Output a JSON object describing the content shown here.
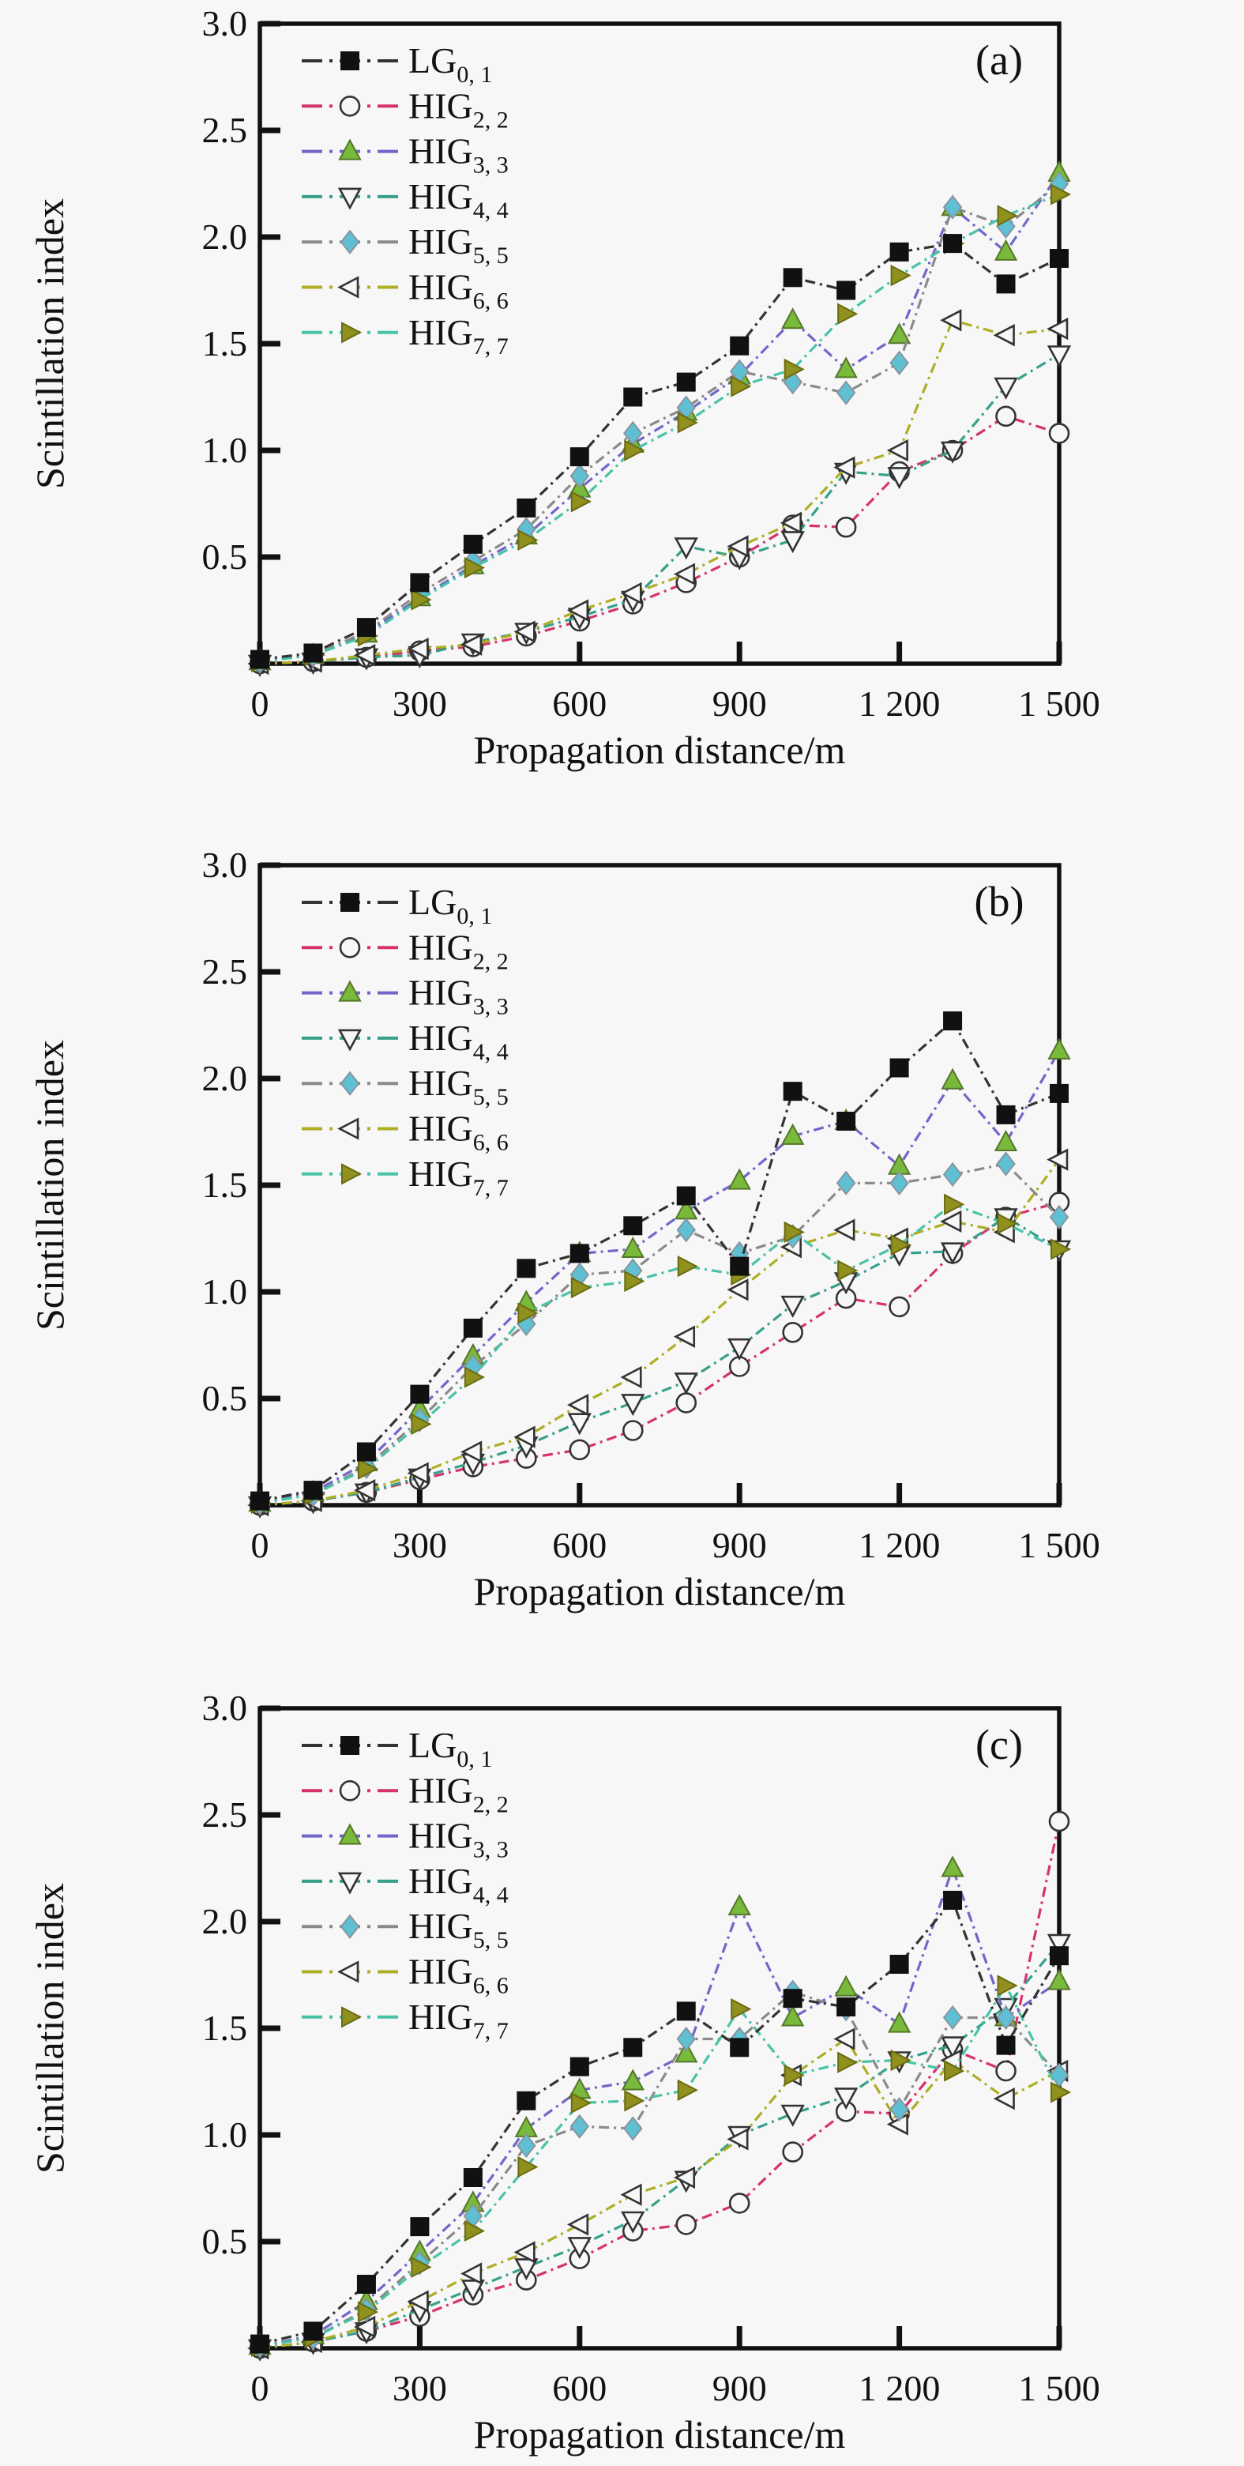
{
  "figure": {
    "background_color": "#f7f7f7",
    "axis_color": "#111111",
    "x_axis": {
      "label": "Propagation distance/m",
      "tick_labels": [
        "0",
        "300",
        "600",
        "900",
        "1 200",
        "1 500"
      ],
      "tick_values": [
        0,
        300,
        600,
        900,
        1200,
        1500
      ],
      "min": 0,
      "max": 1500
    },
    "y_axis": {
      "label": "Scintillation index",
      "tick_labels": [
        "0.5",
        "1.0",
        "1.5",
        "2.0",
        "2.5",
        "3.0"
      ],
      "tick_values": [
        0.5,
        1.0,
        1.5,
        2.0,
        2.5,
        3.0
      ],
      "min": 0,
      "max": 3.0
    }
  },
  "series_styles": [
    {
      "id": "lg01",
      "label": "LG",
      "subscript": "0, 1",
      "marker": "square",
      "filled": true,
      "marker_color": "#111111",
      "marker_edge": "#111111",
      "line_color": "#333333"
    },
    {
      "id": "hig22",
      "label": "HIG",
      "subscript": "2, 2",
      "marker": "circle",
      "filled": false,
      "marker_color": "#f7f7f7",
      "marker_edge": "#333333",
      "line_color": "#d6336c"
    },
    {
      "id": "hig33",
      "label": "HIG",
      "subscript": "3, 3",
      "marker": "triangle-up",
      "filled": true,
      "marker_color": "#79b93c",
      "marker_edge": "#55772a",
      "line_color": "#7166c9"
    },
    {
      "id": "hig44",
      "label": "HIG",
      "subscript": "4, 4",
      "marker": "triangle-down",
      "filled": false,
      "marker_color": "#f7f7f7",
      "marker_edge": "#333333",
      "line_color": "#37a08c"
    },
    {
      "id": "hig55",
      "label": "HIG",
      "subscript": "5, 5",
      "marker": "diamond",
      "filled": true,
      "marker_color": "#5fc0d4",
      "marker_edge": "#8795a0",
      "line_color": "#8a8a8a"
    },
    {
      "id": "hig66",
      "label": "HIG",
      "subscript": "6, 6",
      "marker": "triangle-left",
      "filled": false,
      "marker_color": "#f7f7f7",
      "marker_edge": "#333333",
      "line_color": "#aeae25"
    },
    {
      "id": "hig77",
      "label": "HIG",
      "subscript": "7, 7",
      "marker": "triangle-right",
      "filled": true,
      "marker_color": "#90901f",
      "marker_edge": "#6b6b12",
      "line_color": "#49c3a7"
    }
  ],
  "chart_data": [
    {
      "type": "line",
      "panel_label": "(a)",
      "xlabel": "Propagation distance/m",
      "ylabel": "Scintillation index",
      "xlim": [
        0,
        1500
      ],
      "ylim": [
        0,
        3.0
      ],
      "x": [
        0,
        100,
        200,
        300,
        400,
        500,
        600,
        700,
        800,
        900,
        1000,
        1100,
        1200,
        1300,
        1400,
        1500
      ],
      "series": {
        "lg01": [
          0.02,
          0.05,
          0.17,
          0.38,
          0.56,
          0.73,
          0.97,
          1.25,
          1.32,
          1.49,
          1.81,
          1.75,
          1.93,
          1.97,
          1.78,
          1.9
        ],
        "hig22": [
          0.0,
          0.01,
          0.03,
          0.06,
          0.08,
          0.13,
          0.2,
          0.28,
          0.38,
          0.5,
          0.65,
          0.64,
          0.9,
          1.0,
          1.16,
          1.08
        ],
        "hig33": [
          0.01,
          0.04,
          0.14,
          0.31,
          0.46,
          0.6,
          0.82,
          1.03,
          1.18,
          1.35,
          1.61,
          1.38,
          1.54,
          2.14,
          1.93,
          2.3
        ],
        "hig44": [
          0.0,
          0.01,
          0.03,
          0.04,
          0.1,
          0.15,
          0.22,
          0.3,
          0.55,
          0.5,
          0.58,
          0.9,
          0.88,
          1.0,
          1.3,
          1.45
        ],
        "hig55": [
          0.01,
          0.04,
          0.15,
          0.33,
          0.48,
          0.63,
          0.88,
          1.08,
          1.2,
          1.37,
          1.32,
          1.27,
          1.41,
          2.14,
          2.05,
          2.25
        ],
        "hig66": [
          0.0,
          0.01,
          0.04,
          0.07,
          0.09,
          0.15,
          0.25,
          0.33,
          0.42,
          0.55,
          0.66,
          0.92,
          1.0,
          1.61,
          1.54,
          1.57
        ],
        "hig77": [
          0.01,
          0.04,
          0.13,
          0.3,
          0.45,
          0.58,
          0.76,
          1.0,
          1.13,
          1.3,
          1.38,
          1.64,
          1.82,
          1.97,
          2.1,
          2.2
        ]
      }
    },
    {
      "type": "line",
      "panel_label": "(b)",
      "xlabel": "Propagation distance/m",
      "ylabel": "Scintillation index",
      "xlim": [
        0,
        1500
      ],
      "ylim": [
        0,
        3.0
      ],
      "x": [
        0,
        100,
        200,
        300,
        400,
        500,
        600,
        700,
        800,
        900,
        1000,
        1100,
        1200,
        1300,
        1400,
        1500
      ],
      "series": {
        "lg01": [
          0.02,
          0.07,
          0.25,
          0.52,
          0.83,
          1.11,
          1.18,
          1.31,
          1.45,
          1.12,
          1.94,
          1.8,
          2.05,
          2.27,
          1.83,
          1.93
        ],
        "hig22": [
          0.0,
          0.02,
          0.06,
          0.12,
          0.18,
          0.22,
          0.26,
          0.35,
          0.48,
          0.65,
          0.81,
          0.97,
          0.93,
          1.18,
          1.35,
          1.42
        ],
        "hig33": [
          0.01,
          0.06,
          0.2,
          0.45,
          0.7,
          0.95,
          1.18,
          1.2,
          1.38,
          1.52,
          1.73,
          1.8,
          1.59,
          1.99,
          1.7,
          2.13
        ],
        "hig44": [
          0.0,
          0.02,
          0.06,
          0.13,
          0.2,
          0.28,
          0.39,
          0.48,
          0.58,
          0.74,
          0.94,
          1.05,
          1.18,
          1.19,
          1.35,
          1.2
        ],
        "hig55": [
          0.01,
          0.05,
          0.18,
          0.4,
          0.65,
          0.85,
          1.08,
          1.1,
          1.29,
          1.18,
          1.26,
          1.51,
          1.51,
          1.55,
          1.6,
          1.35
        ],
        "hig66": [
          0.0,
          0.02,
          0.07,
          0.15,
          0.25,
          0.32,
          0.47,
          0.6,
          0.79,
          1.01,
          1.21,
          1.29,
          1.25,
          1.33,
          1.28,
          1.62
        ],
        "hig77": [
          0.01,
          0.05,
          0.17,
          0.38,
          0.6,
          0.9,
          1.02,
          1.05,
          1.12,
          1.08,
          1.28,
          1.1,
          1.22,
          1.41,
          1.32,
          1.2
        ]
      }
    },
    {
      "type": "line",
      "panel_label": "(c)",
      "xlabel": "Propagation distance/m",
      "ylabel": "Scintillation index",
      "xlim": [
        0,
        1500
      ],
      "ylim": [
        0,
        3.0
      ],
      "x": [
        0,
        100,
        200,
        300,
        400,
        500,
        600,
        700,
        800,
        900,
        1000,
        1100,
        1200,
        1300,
        1400,
        1500
      ],
      "series": {
        "lg01": [
          0.02,
          0.08,
          0.3,
          0.57,
          0.8,
          1.16,
          1.32,
          1.41,
          1.58,
          1.41,
          1.64,
          1.6,
          1.8,
          2.1,
          1.42,
          1.84
        ],
        "hig22": [
          0.0,
          0.03,
          0.08,
          0.15,
          0.25,
          0.32,
          0.42,
          0.55,
          0.58,
          0.68,
          0.92,
          1.11,
          1.1,
          1.4,
          1.3,
          2.47
        ],
        "hig33": [
          0.01,
          0.06,
          0.22,
          0.45,
          0.68,
          1.03,
          1.21,
          1.25,
          1.38,
          2.07,
          1.55,
          1.69,
          1.52,
          2.25,
          1.55,
          1.72
        ],
        "hig44": [
          0.0,
          0.03,
          0.08,
          0.18,
          0.28,
          0.38,
          0.48,
          0.6,
          0.79,
          1.0,
          1.1,
          1.18,
          1.35,
          1.42,
          1.6,
          1.9
        ],
        "hig55": [
          0.01,
          0.05,
          0.18,
          0.4,
          0.62,
          0.95,
          1.04,
          1.03,
          1.45,
          1.45,
          1.67,
          1.59,
          1.12,
          1.55,
          1.55,
          1.28
        ],
        "hig66": [
          0.0,
          0.03,
          0.1,
          0.22,
          0.35,
          0.45,
          0.58,
          0.72,
          0.8,
          0.98,
          1.28,
          1.45,
          1.05,
          1.35,
          1.17,
          1.3
        ],
        "hig77": [
          0.01,
          0.05,
          0.17,
          0.38,
          0.55,
          0.85,
          1.15,
          1.16,
          1.21,
          1.59,
          1.28,
          1.34,
          1.35,
          1.3,
          1.7,
          1.2
        ]
      }
    }
  ]
}
